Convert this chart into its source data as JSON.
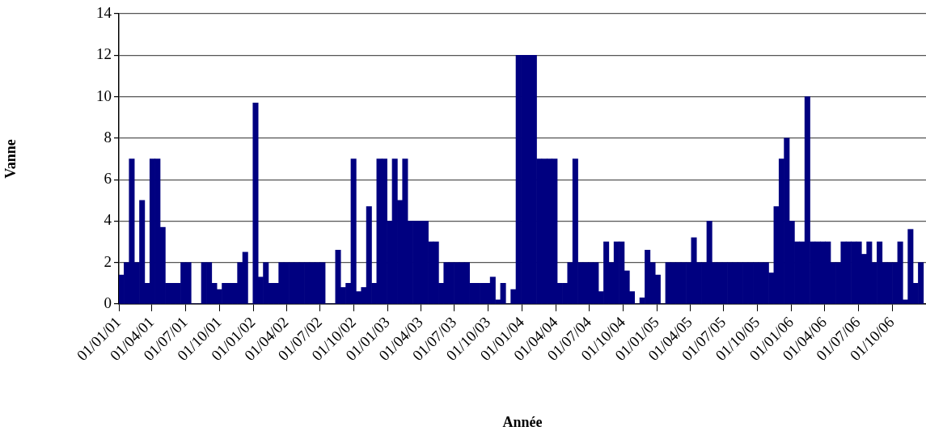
{
  "chart_data": {
    "type": "bar",
    "xlabel": "Année",
    "ylabel": "Vanne",
    "color": "#000080",
    "grid": "y",
    "x": [
      "2001-01-08",
      "2001-01-22",
      "2001-02-05",
      "2001-02-19",
      "2001-03-05",
      "2001-03-19",
      "2001-04-02",
      "2001-04-16",
      "2001-04-30",
      "2001-05-14",
      "2001-05-28",
      "2001-06-11",
      "2001-06-25",
      "2001-07-09",
      "2001-07-23",
      "2001-08-06",
      "2001-08-20",
      "2001-09-03",
      "2001-09-17",
      "2001-10-01",
      "2001-10-15",
      "2001-10-29",
      "2001-11-12",
      "2001-11-26",
      "2001-12-10",
      "2001-12-24",
      "2002-01-07",
      "2002-01-21",
      "2002-02-04",
      "2002-02-18",
      "2002-03-04",
      "2002-03-18",
      "2002-04-01",
      "2002-04-15",
      "2002-04-29",
      "2002-05-13",
      "2002-05-27",
      "2002-06-10",
      "2002-06-24",
      "2002-07-08",
      "2002-07-22",
      "2002-08-05",
      "2002-08-19",
      "2002-09-02",
      "2002-09-16",
      "2002-09-30",
      "2002-10-14",
      "2002-10-28",
      "2002-11-11",
      "2002-11-25",
      "2002-12-09",
      "2002-12-23",
      "2003-01-06",
      "2003-01-20",
      "2003-02-03",
      "2003-02-17",
      "2003-03-03",
      "2003-03-17",
      "2003-03-31",
      "2003-04-14",
      "2003-04-28",
      "2003-05-12",
      "2003-05-26",
      "2003-06-09",
      "2003-06-23",
      "2003-07-07",
      "2003-07-21",
      "2003-08-04",
      "2003-08-18",
      "2003-09-01",
      "2003-09-15",
      "2003-09-29",
      "2003-10-13",
      "2003-10-27",
      "2003-11-10",
      "2003-11-24",
      "2003-12-08",
      "2003-12-22",
      "2004-01-05",
      "2004-01-19",
      "2004-02-02",
      "2004-02-16",
      "2004-03-01",
      "2004-03-15",
      "2004-03-29",
      "2004-04-12",
      "2004-04-26",
      "2004-05-10",
      "2004-05-24",
      "2004-06-07",
      "2004-06-21",
      "2004-07-05",
      "2004-07-19",
      "2004-08-02",
      "2004-08-16",
      "2004-08-30",
      "2004-09-13",
      "2004-09-27",
      "2004-10-11",
      "2004-10-25",
      "2004-11-08",
      "2004-11-22",
      "2004-12-06",
      "2004-12-20",
      "2005-01-03",
      "2005-01-17",
      "2005-01-31",
      "2005-02-14",
      "2005-02-28",
      "2005-03-14",
      "2005-03-28",
      "2005-04-11",
      "2005-04-25",
      "2005-05-09",
      "2005-05-23",
      "2005-06-06",
      "2005-06-20",
      "2005-07-04",
      "2005-07-18",
      "2005-08-01",
      "2005-08-15",
      "2005-08-29",
      "2005-09-12",
      "2005-09-26",
      "2005-10-10",
      "2005-10-24",
      "2005-11-07",
      "2005-11-21",
      "2005-12-05",
      "2005-12-19",
      "2006-01-02",
      "2006-01-16",
      "2006-01-30",
      "2006-02-13",
      "2006-02-27",
      "2006-03-13",
      "2006-03-27",
      "2006-04-10",
      "2006-04-24",
      "2006-05-08",
      "2006-05-22",
      "2006-06-05",
      "2006-06-19",
      "2006-07-03",
      "2006-07-17",
      "2006-07-31",
      "2006-08-14",
      "2006-08-28",
      "2006-09-11",
      "2006-09-25",
      "2006-10-09",
      "2006-10-23",
      "2006-11-06",
      "2006-11-20",
      "2006-12-04",
      "2006-12-18"
    ],
    "values": [
      1.4,
      2,
      7,
      2,
      5,
      1,
      7,
      7,
      3.7,
      1,
      1,
      1,
      2,
      2,
      0,
      0,
      2,
      2,
      1,
      0.7,
      1,
      1,
      1,
      2,
      2.5,
      0,
      9.7,
      1.3,
      2,
      1,
      1,
      2,
      2,
      2,
      2,
      2,
      2,
      2,
      2,
      2,
      0,
      0,
      2.6,
      0.8,
      1,
      7,
      0.6,
      0.8,
      4.7,
      1,
      7,
      7,
      4,
      7,
      5,
      7,
      4,
      4,
      4,
      4,
      3,
      3,
      1,
      2,
      2,
      2,
      2,
      2,
      1,
      1,
      1,
      1,
      1.3,
      0.2,
      1,
      0,
      0.7,
      12,
      12,
      12,
      12,
      7,
      7,
      7,
      7,
      1,
      1,
      2,
      7,
      2,
      2,
      2,
      2,
      0.6,
      3,
      2,
      3,
      3,
      1.6,
      0.6,
      0,
      0.3,
      2.6,
      2,
      1.4,
      0,
      2,
      2,
      2,
      2,
      2,
      3.2,
      2,
      2,
      4,
      2,
      2,
      2,
      2,
      2,
      2,
      2,
      2,
      2,
      2,
      2,
      1.5,
      4.7,
      7,
      8,
      4,
      3,
      3,
      10,
      3,
      3,
      3,
      3,
      2,
      2,
      3,
      3,
      3,
      3,
      2.4,
      3,
      2,
      3,
      2,
      2,
      2,
      3,
      0.2,
      3.6,
      1,
      2
    ],
    "xlim": [
      "2001-01-01",
      "2007-01-01"
    ],
    "xticks": [
      {
        "value": "2001-01-01",
        "label": "01/01/01"
      },
      {
        "value": "2001-04-01",
        "label": "01/04/01"
      },
      {
        "value": "2001-07-01",
        "label": "01/07/01"
      },
      {
        "value": "2001-10-01",
        "label": "01/10/01"
      },
      {
        "value": "2002-01-01",
        "label": "01/01/02"
      },
      {
        "value": "2002-04-01",
        "label": "01/04/02"
      },
      {
        "value": "2002-07-01",
        "label": "01/07/02"
      },
      {
        "value": "2002-10-01",
        "label": "01/10/02"
      },
      {
        "value": "2003-01-01",
        "label": "01/01/03"
      },
      {
        "value": "2003-04-01",
        "label": "01/04/03"
      },
      {
        "value": "2003-07-01",
        "label": "01/07/03"
      },
      {
        "value": "2003-10-01",
        "label": "01/10/03"
      },
      {
        "value": "2004-01-01",
        "label": "01/01/04"
      },
      {
        "value": "2004-04-01",
        "label": "01/04/04"
      },
      {
        "value": "2004-07-01",
        "label": "01/07/04"
      },
      {
        "value": "2004-10-01",
        "label": "01/10/04"
      },
      {
        "value": "2005-01-01",
        "label": "01/01/05"
      },
      {
        "value": "2005-04-01",
        "label": "01/04/05"
      },
      {
        "value": "2005-07-01",
        "label": "01/07/05"
      },
      {
        "value": "2005-10-01",
        "label": "01/10/05"
      },
      {
        "value": "2006-01-01",
        "label": "01/01/06"
      },
      {
        "value": "2006-04-01",
        "label": "01/04/06"
      },
      {
        "value": "2006-07-01",
        "label": "01/07/06"
      },
      {
        "value": "2006-10-01",
        "label": "01/10/06"
      }
    ],
    "ylim": [
      0,
      14
    ],
    "yticks": [
      0,
      2,
      4,
      6,
      8,
      10,
      12,
      14
    ]
  }
}
